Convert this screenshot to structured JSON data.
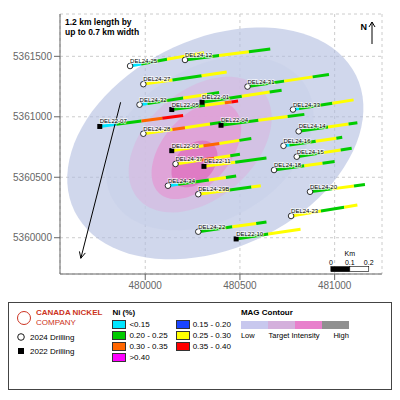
{
  "chart_data": {
    "type": "map",
    "grid": true,
    "xlim": [
      479550,
      481250
    ],
    "ylim": [
      5359700,
      5361850
    ],
    "xticks": [
      480000,
      480500,
      481000
    ],
    "yticks": [
      5360000,
      5360500,
      5361000,
      5361500
    ],
    "blobs": [
      {
        "cx": 480370,
        "cy": 5360780,
        "rx": 700,
        "ry": 1020,
        "angle": -28,
        "color": "#b0bde0"
      },
      {
        "cx": 480340,
        "cy": 5360780,
        "rx": 490,
        "ry": 760,
        "angle": -25,
        "color": "#c8d0ea"
      },
      {
        "cx": 480290,
        "cy": 5360770,
        "rx": 330,
        "ry": 590,
        "angle": -22,
        "color": "#d8b8e0"
      },
      {
        "cx": 480270,
        "cy": 5360720,
        "rx": 200,
        "ry": 420,
        "angle": -20,
        "color": "#e890d0"
      },
      {
        "cx": 480260,
        "cy": 5360610,
        "rx": 110,
        "ry": 200,
        "angle": -18,
        "color": "#e060b8"
      }
    ],
    "drillholes": [
      {
        "name": "DEL24-25",
        "x": [
          479920,
          480310
        ],
        "y": [
          5361420,
          5361530
        ],
        "marker": "circle",
        "segments": [
          {
            "color": "#00e5ff",
            "fraction": 0.15
          },
          {
            "color": "#00cc00",
            "fraction": 0.35
          },
          {
            "color": "#ffff00",
            "fraction": 0.3
          },
          {
            "color": "#ffff00",
            "fraction": 0.2
          }
        ]
      },
      {
        "name": "DEL24-12",
        "x": [
          480210,
          480660
        ],
        "y": [
          5361470,
          5361560
        ],
        "marker": "circle",
        "segments": [
          {
            "color": "#00cc00",
            "fraction": 0.4
          },
          {
            "color": "#ffff00",
            "fraction": 0.35
          },
          {
            "color": "#00cc00",
            "fraction": 0.25
          }
        ]
      },
      {
        "name": "DEL24-27",
        "x": [
          479990,
          480430
        ],
        "y": [
          5361270,
          5361370
        ],
        "marker": "circle",
        "segments": [
          {
            "color": "#ffff00",
            "fraction": 0.35
          },
          {
            "color": "#00cc00",
            "fraction": 0.35
          },
          {
            "color": "#ffff00",
            "fraction": 0.3
          }
        ]
      },
      {
        "name": "DEL24-31",
        "x": [
          480540,
          480970
        ],
        "y": [
          5361250,
          5361350
        ],
        "marker": "circle",
        "segments": [
          {
            "color": "#00cc00",
            "fraction": 0.45
          },
          {
            "color": "#ffff00",
            "fraction": 0.35
          },
          {
            "color": "#00cc00",
            "fraction": 0.2
          }
        ]
      },
      {
        "name": "DEL24-32",
        "x": [
          479970,
          480390
        ],
        "y": [
          5361100,
          5361200
        ],
        "marker": "circle",
        "segments": [
          {
            "color": "#00e5ff",
            "fraction": 0.1
          },
          {
            "color": "#00cc00",
            "fraction": 0.45
          },
          {
            "color": "#ffff00",
            "fraction": 0.3
          },
          {
            "color": "#00cc00",
            "fraction": 0.15
          }
        ]
      },
      {
        "name": "DEL22-05",
        "x": [
          480140,
          480490
        ],
        "y": [
          5361060,
          5361130
        ],
        "marker": "square",
        "segments": [
          {
            "color": "#00cc00",
            "fraction": 0.5
          },
          {
            "color": "#ffff00",
            "fraction": 0.3
          },
          {
            "color": "#ff6600",
            "fraction": 0.1
          },
          {
            "color": "#ff0000",
            "fraction": 0.1
          }
        ]
      },
      {
        "name": "DEL22-01",
        "x": [
          480300,
          480720
        ],
        "y": [
          5361120,
          5361220
        ],
        "marker": "square",
        "segments": [
          {
            "color": "#00cc00",
            "fraction": 0.5
          },
          {
            "color": "#ffff00",
            "fraction": 0.35
          },
          {
            "color": "#00cc00",
            "fraction": 0.15
          }
        ]
      },
      {
        "name": "DEL24-33",
        "x": [
          480780,
          481100
        ],
        "y": [
          5361060,
          5361140
        ],
        "marker": "circle",
        "segments": [
          {
            "color": "#00e5ff",
            "fraction": 0.1
          },
          {
            "color": "#00cc00",
            "fraction": 0.55
          },
          {
            "color": "#ffff00",
            "fraction": 0.35
          }
        ]
      },
      {
        "name": "DEL22-07",
        "x": [
          479760,
          480200
        ],
        "y": [
          5360920,
          5361010
        ],
        "marker": "square",
        "segments": [
          {
            "color": "#00e5ff",
            "fraction": 0.2
          },
          {
            "color": "#00cc00",
            "fraction": 0.3
          },
          {
            "color": "#ff6600",
            "fraction": 0.25
          },
          {
            "color": "#ff0000",
            "fraction": 0.25
          }
        ]
      },
      {
        "name": "DEL24-28",
        "x": [
          479990,
          480430
        ],
        "y": [
          5360860,
          5360960
        ],
        "marker": "circle",
        "segments": [
          {
            "color": "#ffff00",
            "fraction": 0.35
          },
          {
            "color": "#ff6600",
            "fraction": 0.15
          },
          {
            "color": "#ffff00",
            "fraction": 0.3
          },
          {
            "color": "#00cc00",
            "fraction": 0.2
          }
        ]
      },
      {
        "name": "DEL22-04",
        "x": [
          480400,
          480840
        ],
        "y": [
          5360930,
          5361020
        ],
        "marker": "square",
        "segments": [
          {
            "color": "#00cc00",
            "fraction": 0.45
          },
          {
            "color": "#ffff00",
            "fraction": 0.35
          },
          {
            "color": "#00cc00",
            "fraction": 0.2
          }
        ]
      },
      {
        "name": "DEL24-14",
        "x": [
          480810,
          481120
        ],
        "y": [
          5360880,
          5360950
        ],
        "marker": "circle",
        "segments": [
          {
            "color": "#00cc00",
            "fraction": 0.5
          },
          {
            "color": "#ffff00",
            "fraction": 0.35
          },
          {
            "color": "#00cc00",
            "fraction": 0.15
          }
        ]
      },
      {
        "name": "DEL22-03",
        "x": [
          480140,
          480560
        ],
        "y": [
          5360720,
          5360820
        ],
        "marker": "square",
        "segments": [
          {
            "color": "#ffff00",
            "fraction": 0.4
          },
          {
            "color": "#ff6600",
            "fraction": 0.2
          },
          {
            "color": "#ffff00",
            "fraction": 0.25
          },
          {
            "color": "#00cc00",
            "fraction": 0.15
          }
        ]
      },
      {
        "name": "DEL24-16",
        "x": [
          480730,
          481040
        ],
        "y": [
          5360760,
          5360830
        ],
        "marker": "circle",
        "segments": [
          {
            "color": "#00e5ff",
            "fraction": 0.1
          },
          {
            "color": "#00cc00",
            "fraction": 0.45
          },
          {
            "color": "#ffff00",
            "fraction": 0.35
          },
          {
            "color": "#00cc00",
            "fraction": 0.1
          }
        ]
      },
      {
        "name": "DEL24-15",
        "x": [
          480800,
          481090
        ],
        "y": [
          5360670,
          5360740
        ],
        "marker": "circle",
        "segments": [
          {
            "color": "#00cc00",
            "fraction": 0.45
          },
          {
            "color": "#ffff00",
            "fraction": 0.35
          },
          {
            "color": "#00cc00",
            "fraction": 0.2
          }
        ]
      },
      {
        "name": "DEL24-37",
        "x": [
          480160,
          480500
        ],
        "y": [
          5360610,
          5360690
        ],
        "marker": "circle",
        "segments": [
          {
            "color": "#ffff00",
            "fraction": 0.4
          },
          {
            "color": "#ff6600",
            "fraction": 0.2
          },
          {
            "color": "#ffff00",
            "fraction": 0.25
          },
          {
            "color": "#00cc00",
            "fraction": 0.15
          }
        ]
      },
      {
        "name": "DEL22-11",
        "x": [
          480310,
          480640
        ],
        "y": [
          5360590,
          5360660
        ],
        "marker": "square",
        "segments": [
          {
            "color": "#ffff00",
            "fraction": 0.5
          },
          {
            "color": "#00cc00",
            "fraction": 0.5
          }
        ]
      },
      {
        "name": "DEL24-18",
        "x": [
          480680,
          481000
        ],
        "y": [
          5360560,
          5360630
        ],
        "marker": "circle",
        "segments": [
          {
            "color": "#00cc00",
            "fraction": 0.5
          },
          {
            "color": "#ffff00",
            "fraction": 0.3
          },
          {
            "color": "#00cc00",
            "fraction": 0.2
          }
        ]
      },
      {
        "name": "DEL24-34",
        "x": [
          480120,
          480480
        ],
        "y": [
          5360430,
          5360510
        ],
        "marker": "circle",
        "segments": [
          {
            "color": "#00e5ff",
            "fraction": 0.15
          },
          {
            "color": "#00cc00",
            "fraction": 0.45
          },
          {
            "color": "#ffff00",
            "fraction": 0.25
          },
          {
            "color": "#00cc00",
            "fraction": 0.15
          }
        ]
      },
      {
        "name": "DEL24-29B",
        "x": [
          480280,
          480610
        ],
        "y": [
          5360360,
          5360430
        ],
        "marker": "circle",
        "segments": [
          {
            "color": "#ffff00",
            "fraction": 0.5
          },
          {
            "color": "#00cc00",
            "fraction": 0.35
          },
          {
            "color": "#ffff00",
            "fraction": 0.15
          }
        ]
      },
      {
        "name": "DEL24-20",
        "x": [
          480870,
          481160
        ],
        "y": [
          5360380,
          5360440
        ],
        "marker": "circle",
        "segments": [
          {
            "color": "#00cc00",
            "fraction": 0.4
          },
          {
            "color": "#ffff00",
            "fraction": 0.4
          },
          {
            "color": "#00cc00",
            "fraction": 0.2
          }
        ]
      },
      {
        "name": "DEL24-23",
        "x": [
          480770,
          481120
        ],
        "y": [
          5360180,
          5360270
        ],
        "marker": "circle",
        "segments": [
          {
            "color": "#ffff00",
            "fraction": 0.45
          },
          {
            "color": "#00cc00",
            "fraction": 0.35
          },
          {
            "color": "#ffff00",
            "fraction": 0.2
          }
        ]
      },
      {
        "name": "DEL24-22",
        "x": [
          480280,
          480640
        ],
        "y": [
          5360050,
          5360130
        ],
        "marker": "circle",
        "segments": [
          {
            "color": "#00cc00",
            "fraction": 0.5
          },
          {
            "color": "#ffff00",
            "fraction": 0.35
          },
          {
            "color": "#00cc00",
            "fraction": 0.15
          }
        ]
      },
      {
        "name": "DEL22-10",
        "x": [
          480480,
          480820
        ],
        "y": [
          5359990,
          5360070
        ],
        "marker": "square",
        "segments": [
          {
            "color": "#00cc00",
            "fraction": 0.5
          },
          {
            "color": "#ffff00",
            "fraction": 0.5
          }
        ]
      }
    ],
    "annotation": "1.2 km length by\nup to 0.7 km width",
    "arrow": {
      "x": [
        479870,
        479660
      ],
      "y": [
        5361120,
        5359830
      ]
    },
    "logo": {
      "lines": [
        "CANADA NICKEL",
        "COMPANY"
      ],
      "color": "#cc3322"
    },
    "drilling_legend": [
      {
        "label": "2024 Drilling",
        "marker": "circle"
      },
      {
        "label": "2022 Drilling",
        "marker": "square"
      }
    ],
    "ni_legend": {
      "title": "Ni (%)",
      "items": [
        {
          "label": "<0.15",
          "color": "#00e5ff"
        },
        {
          "label": "0.15 - 0.20",
          "color": "#1a44ff"
        },
        {
          "label": "0.20 - 0.25",
          "color": "#00cc00"
        },
        {
          "label": "0.25 - 0.30",
          "color": "#ffff00"
        },
        {
          "label": "0.30 - 0.35",
          "color": "#ff6600"
        },
        {
          "label": "0.35 - 0.40",
          "color": "#ff0000"
        },
        {
          "label": ">0.40",
          "color": "#ff00ff"
        }
      ]
    },
    "mag_legend": {
      "title": "MAG Contour",
      "colors": [
        "#c8c8ee",
        "#d4b0dc",
        "#e880cc",
        "#909090"
      ],
      "labels": [
        "Low",
        "Target Intensity",
        "High"
      ]
    },
    "north_label": "N",
    "scalebar": {
      "x": [
        480980,
        481080,
        481180
      ],
      "y": 5359740,
      "labels": [
        0,
        0.1,
        0.2
      ],
      "unit": "Km"
    }
  }
}
